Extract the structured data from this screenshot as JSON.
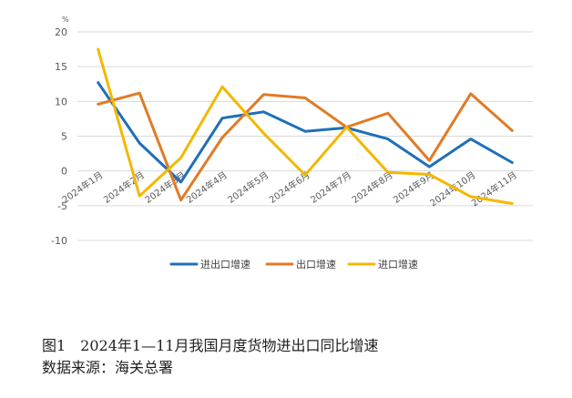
{
  "caption": {
    "line1": "图1　2024年1—11月我国月度货物进出口同比增速",
    "line2": "数据来源：海关总署"
  },
  "chart_data": {
    "type": "line",
    "unit": "%",
    "categories": [
      "2024年1月",
      "2024年2月",
      "2024年3月",
      "2024年4月",
      "2024年5月",
      "2024年6月",
      "2024年7月",
      "2024年8月",
      "2024年9月",
      "2024年10月",
      "2024年11月"
    ],
    "ylim": [
      -10,
      20
    ],
    "yticks": [
      -10,
      -5,
      0,
      5,
      10,
      15,
      20
    ],
    "grid": true,
    "legend_position": "bottom",
    "series": [
      {
        "name": "进出口增速",
        "color": "#1f6fb8",
        "values": [
          12.7,
          4.0,
          -1.6,
          7.6,
          8.5,
          5.7,
          6.2,
          4.6,
          0.6,
          4.6,
          1.2
        ]
      },
      {
        "name": "出口增速",
        "color": "#e07b26",
        "values": [
          9.6,
          11.2,
          -4.2,
          4.8,
          11.0,
          10.5,
          6.3,
          8.3,
          1.5,
          11.1,
          5.8
        ]
      },
      {
        "name": "进口增速",
        "color": "#f2b800",
        "values": [
          17.5,
          -3.6,
          1.9,
          12.1,
          5.4,
          -0.6,
          6.3,
          -0.2,
          -0.5,
          -3.7,
          -4.7
        ]
      }
    ]
  }
}
